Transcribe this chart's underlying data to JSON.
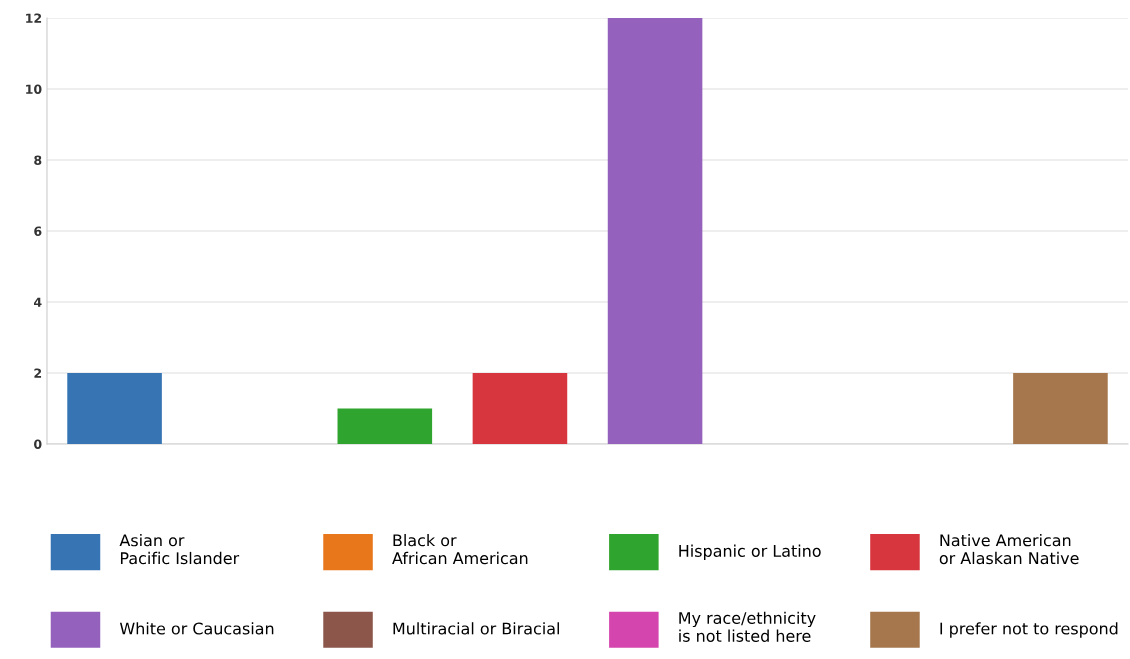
{
  "chart_data": {
    "type": "bar",
    "categories": [
      null,
      null,
      null,
      null,
      null,
      null,
      null,
      null
    ],
    "series": [
      {
        "name": "Asian or\nPacific Islander",
        "color": "#3674b4",
        "values": [
          2,
          null,
          null,
          null,
          null,
          null,
          null,
          null
        ]
      },
      {
        "name": "Black or\nAfrican American",
        "color": "#e8761a",
        "values": [
          null,
          0,
          null,
          null,
          null,
          null,
          null,
          null
        ]
      },
      {
        "name": "Hispanic or Latino",
        "color": "#2fa42f",
        "values": [
          null,
          null,
          1,
          null,
          null,
          null,
          null,
          null
        ]
      },
      {
        "name": "Native American\nor Alaskan Native",
        "color": "#d7363e",
        "values": [
          null,
          null,
          null,
          2,
          null,
          null,
          null,
          null
        ]
      },
      {
        "name": "White or Caucasian",
        "color": "#9462bd",
        "values": [
          null,
          null,
          null,
          null,
          12,
          null,
          null,
          null
        ]
      },
      {
        "name": "Multiracial or Biracial",
        "color": "#8c564b",
        "values": [
          null,
          null,
          null,
          null,
          null,
          0,
          null,
          null
        ]
      },
      {
        "name": "My race/ethnicity\nis not listed here",
        "color": "#d445ad",
        "values": [
          null,
          null,
          null,
          null,
          null,
          null,
          0,
          null
        ]
      },
      {
        "name": "I prefer not to respond",
        "color": "#a6774c",
        "values": [
          null,
          null,
          null,
          null,
          null,
          null,
          null,
          2
        ]
      }
    ],
    "ylim": [
      0,
      12
    ],
    "yticks": [
      0,
      2,
      4,
      6,
      8,
      10,
      12
    ],
    "grid": "y",
    "legend": "bottom"
  }
}
